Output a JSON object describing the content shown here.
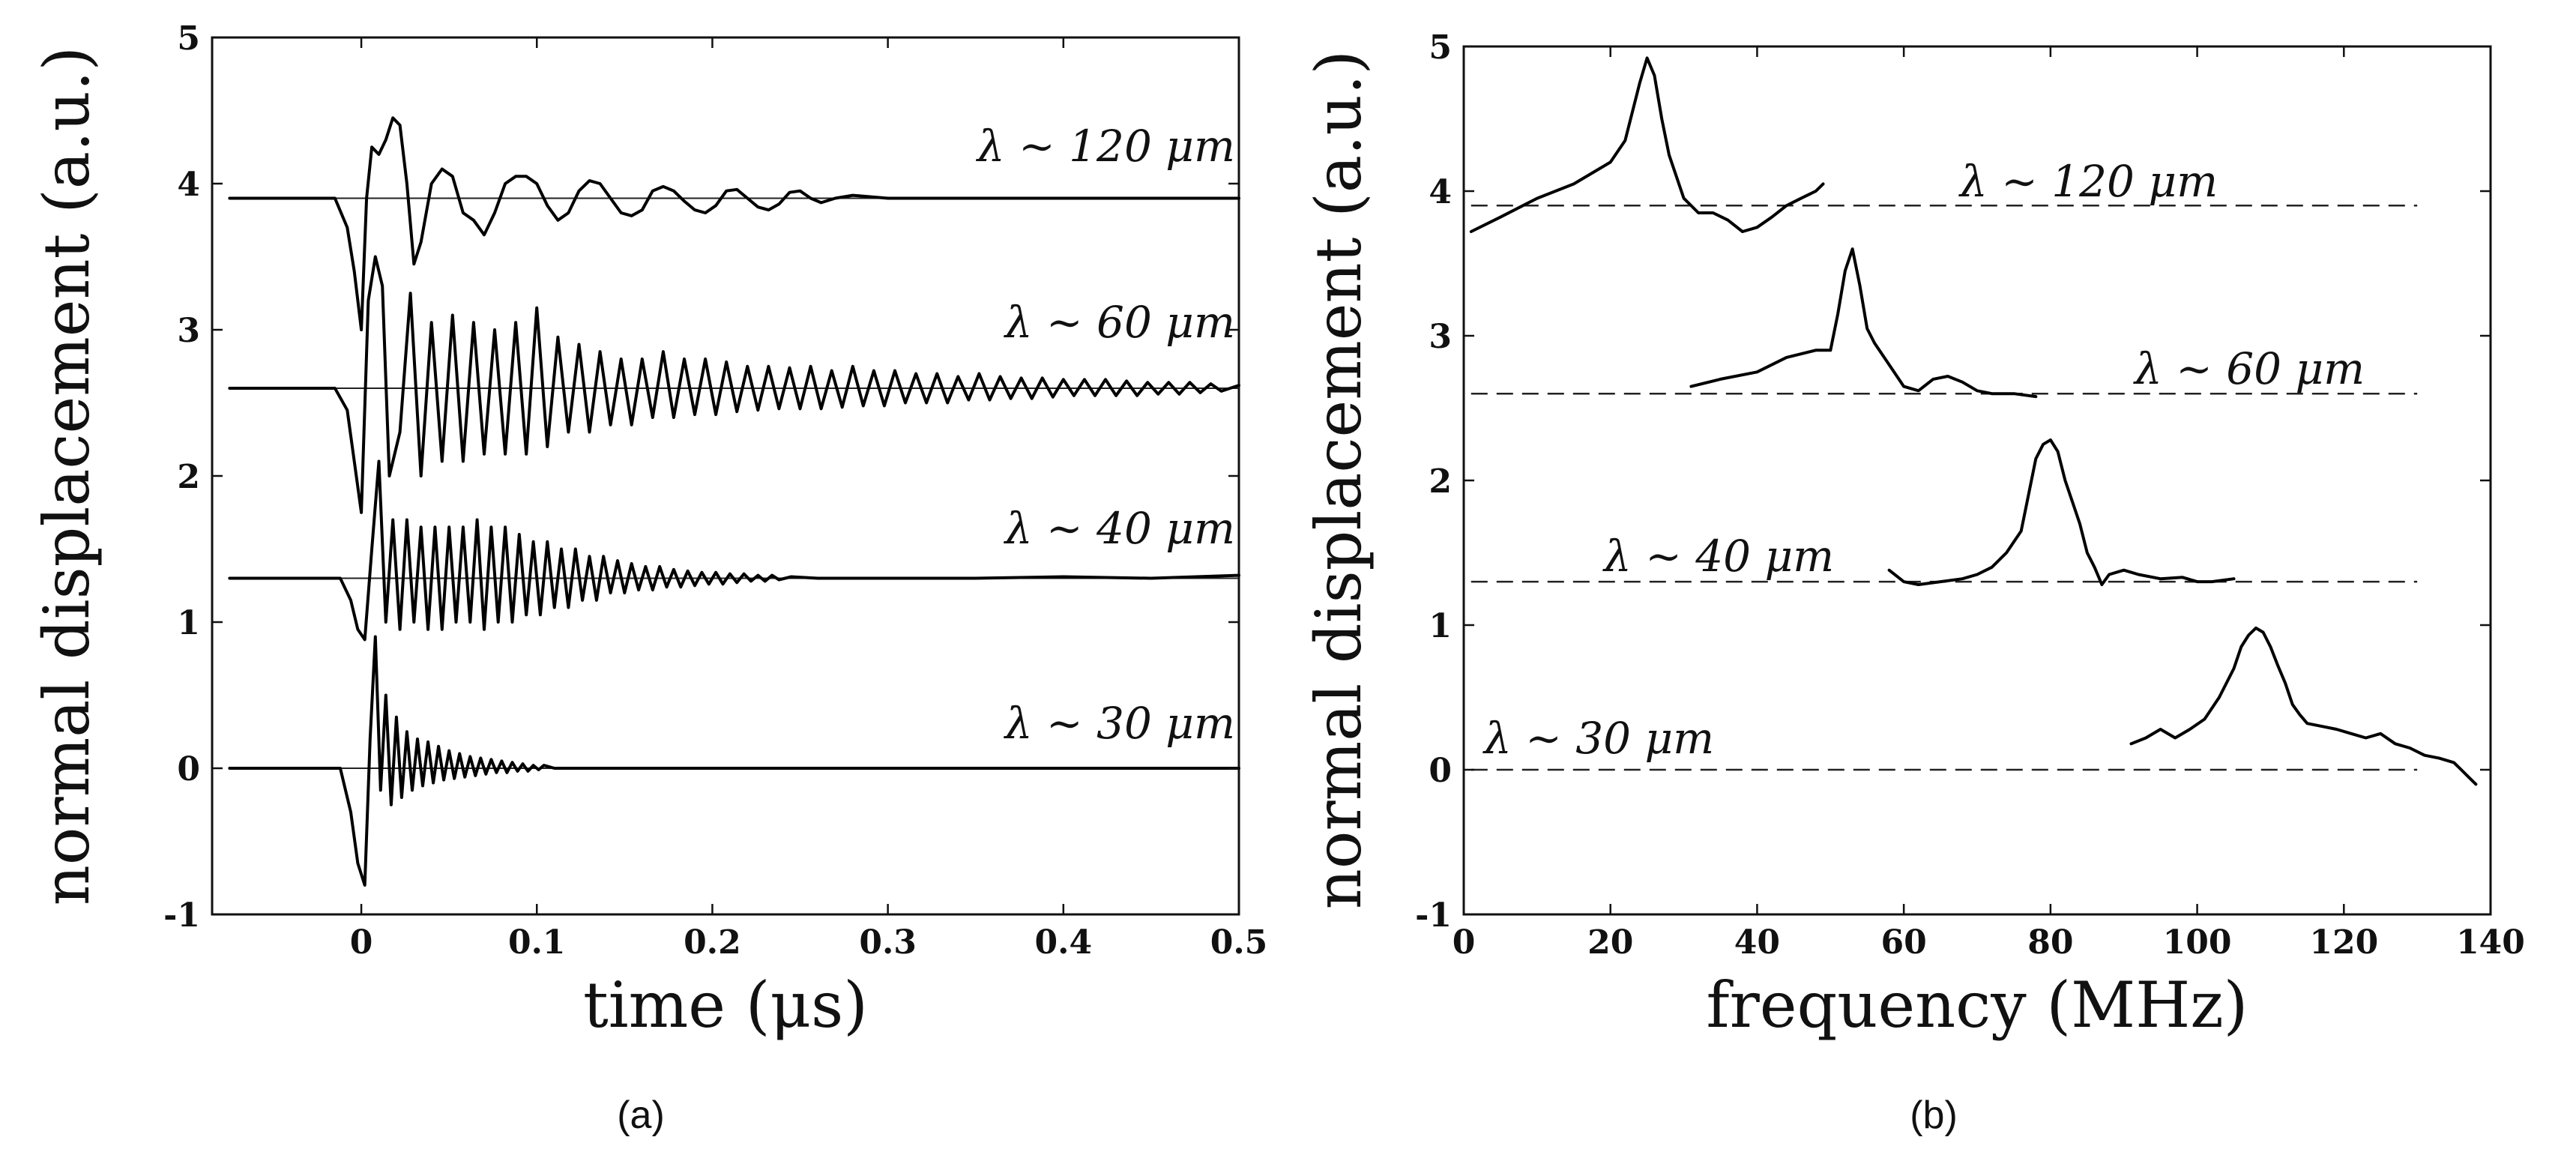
{
  "chart_data": [
    {
      "panel": "a",
      "type": "line",
      "caption": "(a)",
      "xlabel": "time (μs)",
      "ylabel": "normal displacement (a.u.)",
      "xlim": [
        -0.085,
        0.5
      ],
      "ylim": [
        -1,
        5
      ],
      "xticks": [
        0,
        0.1,
        0.2,
        0.3,
        0.4,
        0.5
      ],
      "xticklabels": [
        "0",
        "0.1",
        "0.2",
        "0.3",
        "0.4",
        "0.5"
      ],
      "yticks": [
        -1,
        0,
        1,
        2,
        3,
        4,
        5
      ],
      "yticklabels": [
        "-1",
        "0",
        "1",
        "2",
        "3",
        "4",
        "5"
      ],
      "series": [
        {
          "name": "λ ∼ 120 μm",
          "label": "λ ∼ 120 μm",
          "baseline": 3.9,
          "x": [
            -0.075,
            -0.015,
            -0.008,
            -0.004,
            0.0,
            0.003,
            0.006,
            0.01,
            0.014,
            0.018,
            0.022,
            0.026,
            0.03,
            0.034,
            0.04,
            0.046,
            0.052,
            0.058,
            0.064,
            0.07,
            0.076,
            0.082,
            0.088,
            0.094,
            0.1,
            0.106,
            0.112,
            0.118,
            0.124,
            0.13,
            0.136,
            0.142,
            0.148,
            0.154,
            0.16,
            0.166,
            0.172,
            0.178,
            0.184,
            0.19,
            0.196,
            0.202,
            0.208,
            0.214,
            0.22,
            0.226,
            0.232,
            0.238,
            0.244,
            0.25,
            0.256,
            0.262,
            0.27,
            0.28,
            0.3,
            0.35,
            0.4,
            0.45,
            0.5
          ],
          "y": [
            3.9,
            3.9,
            3.7,
            3.4,
            3.0,
            3.9,
            4.25,
            4.2,
            4.3,
            4.45,
            4.4,
            4.0,
            3.45,
            3.6,
            4.0,
            4.1,
            4.05,
            3.8,
            3.75,
            3.65,
            3.8,
            4.0,
            4.05,
            4.05,
            4.0,
            3.85,
            3.75,
            3.8,
            3.95,
            4.02,
            4.0,
            3.9,
            3.8,
            3.78,
            3.82,
            3.95,
            3.98,
            3.95,
            3.88,
            3.82,
            3.8,
            3.85,
            3.95,
            3.96,
            3.9,
            3.84,
            3.82,
            3.86,
            3.94,
            3.95,
            3.9,
            3.87,
            3.9,
            3.92,
            3.9,
            3.9,
            3.9,
            3.9,
            3.9
          ]
        },
        {
          "name": "λ ∼ 60 μm",
          "label": "λ ∼ 60 μm",
          "baseline": 2.6,
          "x": [
            -0.075,
            -0.015,
            -0.008,
            -0.004,
            0.0,
            0.004,
            0.008,
            0.012,
            0.016,
            0.022,
            0.028,
            0.034,
            0.04,
            0.046,
            0.052,
            0.058,
            0.064,
            0.07,
            0.076,
            0.082,
            0.088,
            0.094,
            0.1,
            0.106,
            0.112,
            0.118,
            0.124,
            0.13,
            0.136,
            0.142,
            0.148,
            0.154,
            0.16,
            0.166,
            0.172,
            0.178,
            0.184,
            0.19,
            0.196,
            0.202,
            0.208,
            0.214,
            0.22,
            0.226,
            0.232,
            0.238,
            0.244,
            0.25,
            0.256,
            0.262,
            0.268,
            0.274,
            0.28,
            0.286,
            0.292,
            0.298,
            0.304,
            0.31,
            0.316,
            0.322,
            0.328,
            0.334,
            0.34,
            0.346,
            0.352,
            0.358,
            0.364,
            0.37,
            0.376,
            0.382,
            0.388,
            0.394,
            0.4,
            0.406,
            0.412,
            0.418,
            0.424,
            0.43,
            0.436,
            0.442,
            0.448,
            0.454,
            0.46,
            0.466,
            0.472,
            0.478,
            0.484,
            0.49,
            0.5
          ],
          "y": [
            2.6,
            2.6,
            2.45,
            2.1,
            1.75,
            3.2,
            3.5,
            3.3,
            2.0,
            2.3,
            3.25,
            2.0,
            3.05,
            2.1,
            3.1,
            2.1,
            3.05,
            2.15,
            3.0,
            2.15,
            3.05,
            2.15,
            3.15,
            2.2,
            2.95,
            2.3,
            2.9,
            2.3,
            2.85,
            2.35,
            2.8,
            2.35,
            2.8,
            2.4,
            2.85,
            2.4,
            2.8,
            2.42,
            2.8,
            2.42,
            2.78,
            2.44,
            2.75,
            2.45,
            2.75,
            2.46,
            2.74,
            2.46,
            2.75,
            2.46,
            2.72,
            2.47,
            2.75,
            2.48,
            2.72,
            2.48,
            2.72,
            2.5,
            2.7,
            2.5,
            2.7,
            2.5,
            2.68,
            2.52,
            2.7,
            2.52,
            2.68,
            2.53,
            2.67,
            2.53,
            2.67,
            2.54,
            2.66,
            2.55,
            2.66,
            2.55,
            2.66,
            2.55,
            2.65,
            2.55,
            2.64,
            2.56,
            2.64,
            2.56,
            2.64,
            2.57,
            2.63,
            2.58,
            2.62
          ]
        },
        {
          "name": "λ ∼ 40 μm",
          "label": "λ ∼ 40 μm",
          "baseline": 1.3,
          "x": [
            -0.075,
            -0.012,
            -0.006,
            -0.002,
            0.002,
            0.006,
            0.01,
            0.014,
            0.018,
            0.022,
            0.026,
            0.03,
            0.034,
            0.038,
            0.042,
            0.046,
            0.05,
            0.054,
            0.058,
            0.062,
            0.066,
            0.07,
            0.074,
            0.078,
            0.082,
            0.086,
            0.09,
            0.094,
            0.098,
            0.102,
            0.106,
            0.11,
            0.114,
            0.118,
            0.122,
            0.126,
            0.13,
            0.134,
            0.138,
            0.142,
            0.146,
            0.15,
            0.154,
            0.158,
            0.162,
            0.166,
            0.17,
            0.174,
            0.178,
            0.182,
            0.186,
            0.19,
            0.194,
            0.198,
            0.202,
            0.206,
            0.21,
            0.214,
            0.218,
            0.222,
            0.226,
            0.23,
            0.234,
            0.238,
            0.245,
            0.26,
            0.3,
            0.35,
            0.4,
            0.45,
            0.5
          ],
          "y": [
            1.3,
            1.3,
            1.15,
            0.95,
            0.88,
            1.5,
            2.1,
            1.0,
            1.7,
            0.95,
            1.7,
            1.0,
            1.65,
            0.95,
            1.65,
            0.95,
            1.65,
            1.0,
            1.65,
            1.0,
            1.7,
            0.95,
            1.65,
            1.0,
            1.65,
            1.0,
            1.6,
            1.05,
            1.55,
            1.05,
            1.55,
            1.1,
            1.5,
            1.1,
            1.5,
            1.15,
            1.45,
            1.15,
            1.45,
            1.2,
            1.42,
            1.2,
            1.4,
            1.22,
            1.38,
            1.22,
            1.38,
            1.24,
            1.36,
            1.24,
            1.35,
            1.25,
            1.34,
            1.26,
            1.34,
            1.26,
            1.33,
            1.27,
            1.33,
            1.28,
            1.32,
            1.28,
            1.32,
            1.29,
            1.31,
            1.3,
            1.3,
            1.3,
            1.31,
            1.3,
            1.32
          ]
        },
        {
          "name": "λ ∼ 30 μm",
          "label": "λ ∼ 30 μm",
          "baseline": 0.0,
          "x": [
            -0.075,
            -0.012,
            -0.006,
            -0.002,
            0.002,
            0.005,
            0.008,
            0.011,
            0.014,
            0.017,
            0.02,
            0.023,
            0.026,
            0.029,
            0.032,
            0.035,
            0.038,
            0.041,
            0.044,
            0.047,
            0.05,
            0.053,
            0.056,
            0.059,
            0.062,
            0.065,
            0.068,
            0.071,
            0.074,
            0.077,
            0.08,
            0.083,
            0.086,
            0.089,
            0.092,
            0.095,
            0.098,
            0.101,
            0.104,
            0.11,
            0.12,
            0.15,
            0.2,
            0.3,
            0.4,
            0.5
          ],
          "y": [
            0.0,
            0.0,
            -0.3,
            -0.65,
            -0.8,
            0.2,
            0.9,
            -0.15,
            0.5,
            -0.25,
            0.35,
            -0.2,
            0.25,
            -0.15,
            0.2,
            -0.12,
            0.18,
            -0.1,
            0.15,
            -0.08,
            0.12,
            -0.07,
            0.1,
            -0.06,
            0.08,
            -0.05,
            0.07,
            -0.04,
            0.06,
            -0.03,
            0.05,
            -0.03,
            0.04,
            -0.02,
            0.03,
            -0.02,
            0.02,
            -0.01,
            0.02,
            0.0,
            0.0,
            0.0,
            0.0,
            0.0,
            0.0,
            0.0
          ]
        }
      ]
    },
    {
      "panel": "b",
      "type": "line",
      "caption": "(b)",
      "xlabel": "frequency (MHz)",
      "ylabel": "normal displacement (a.u.)",
      "xlim": [
        0,
        140
      ],
      "ylim": [
        -1,
        5
      ],
      "xticks": [
        0,
        20,
        40,
        60,
        80,
        100,
        120,
        140
      ],
      "xticklabels": [
        "0",
        "20",
        "40",
        "60",
        "80",
        "100",
        "120",
        "140"
      ],
      "yticks": [
        -1,
        0,
        1,
        2,
        3,
        4,
        5
      ],
      "yticklabels": [
        "-1",
        "0",
        "1",
        "2",
        "3",
        "4",
        "5"
      ],
      "series": [
        {
          "name": "λ ∼ 120 μm",
          "label": "λ ∼ 120 μm",
          "baseline": 3.9,
          "x": [
            1,
            5,
            10,
            15,
            20,
            22,
            24,
            25,
            26,
            27,
            28,
            30,
            32,
            34,
            36,
            38,
            40,
            42,
            44,
            46,
            48,
            49
          ],
          "y": [
            3.72,
            3.82,
            3.95,
            4.05,
            4.2,
            4.35,
            4.75,
            4.92,
            4.8,
            4.5,
            4.25,
            3.95,
            3.85,
            3.85,
            3.8,
            3.72,
            3.75,
            3.82,
            3.9,
            3.95,
            4.0,
            4.05
          ]
        },
        {
          "name": "λ ∼ 60 μm",
          "label": "λ ∼ 60 μm",
          "baseline": 2.6,
          "x": [
            31,
            35,
            40,
            44,
            48,
            50,
            51,
            52,
            53,
            54,
            55,
            56,
            58,
            60,
            62,
            64,
            66,
            68,
            70,
            72,
            75,
            78
          ],
          "y": [
            2.65,
            2.7,
            2.75,
            2.85,
            2.9,
            2.9,
            3.15,
            3.45,
            3.6,
            3.35,
            3.05,
            2.95,
            2.8,
            2.65,
            2.62,
            2.7,
            2.72,
            2.68,
            2.62,
            2.6,
            2.6,
            2.58
          ]
        },
        {
          "name": "λ ∼ 40 μm",
          "label": "λ ∼ 40 μm",
          "baseline": 1.3,
          "x": [
            58,
            60,
            62,
            65,
            68,
            70,
            72,
            74,
            76,
            77,
            78,
            79,
            80,
            81,
            82,
            83,
            84,
            85,
            86,
            87,
            88,
            90,
            92,
            95,
            98,
            100,
            102,
            105
          ],
          "y": [
            1.38,
            1.3,
            1.28,
            1.3,
            1.32,
            1.35,
            1.4,
            1.5,
            1.65,
            1.9,
            2.15,
            2.25,
            2.28,
            2.2,
            2.0,
            1.85,
            1.7,
            1.5,
            1.4,
            1.28,
            1.35,
            1.38,
            1.35,
            1.32,
            1.33,
            1.3,
            1.3,
            1.32
          ]
        },
        {
          "name": "λ ∼ 30 μm",
          "label": "λ ∼ 30 μm",
          "baseline": 0.0,
          "x": [
            91,
            93,
            95,
            97,
            99,
            101,
            103,
            105,
            106,
            107,
            108,
            109,
            110,
            111,
            112,
            113,
            114,
            115,
            117,
            119,
            121,
            123,
            125,
            127,
            129,
            131,
            133,
            135,
            136,
            137,
            138
          ],
          "y": [
            0.18,
            0.22,
            0.28,
            0.22,
            0.28,
            0.35,
            0.5,
            0.7,
            0.85,
            0.93,
            0.98,
            0.95,
            0.85,
            0.72,
            0.6,
            0.45,
            0.38,
            0.32,
            0.3,
            0.28,
            0.25,
            0.22,
            0.25,
            0.18,
            0.15,
            0.1,
            0.08,
            0.05,
            0.0,
            -0.05,
            -0.1
          ]
        }
      ]
    }
  ]
}
